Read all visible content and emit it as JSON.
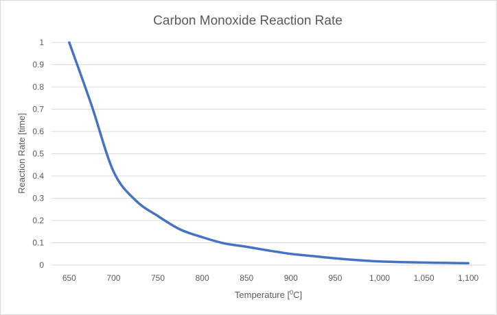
{
  "chart_data": {
    "type": "line",
    "title": "Carbon Monoxide Reaction Rate",
    "xlabel_main": "Temperature [",
    "xlabel_sup": "0",
    "xlabel_end": "C]",
    "ylabel": "Reaction Rate [time]",
    "x_ticks": [
      650,
      700,
      750,
      800,
      850,
      900,
      950,
      1000,
      1050,
      1100
    ],
    "x_tick_labels": [
      "650",
      "700",
      "750",
      "800",
      "850",
      "900",
      "950",
      "1,000",
      "1,050",
      "1,100"
    ],
    "y_ticks": [
      0,
      0.1,
      0.2,
      0.3,
      0.4,
      0.5,
      0.6,
      0.7,
      0.8,
      0.9,
      1
    ],
    "y_tick_labels": [
      "0",
      "0.1",
      "0.2",
      "0.3",
      "0.4",
      "0.5",
      "0.6",
      "0.7",
      "0.8",
      "0.9",
      "1"
    ],
    "xlim": [
      630,
      1120
    ],
    "ylim": [
      0,
      1
    ],
    "grid": true,
    "series": [
      {
        "color": "#4472c4",
        "x": [
          650,
          675,
          700,
          725,
          750,
          775,
          800,
          825,
          850,
          875,
          900,
          925,
          950,
          975,
          1000,
          1025,
          1050,
          1075,
          1100
        ],
        "y": [
          1.0,
          0.72,
          0.42,
          0.29,
          0.22,
          0.16,
          0.125,
          0.097,
          0.082,
          0.065,
          0.05,
          0.04,
          0.03,
          0.022,
          0.016,
          0.013,
          0.011,
          0.0095,
          0.008
        ]
      }
    ]
  }
}
